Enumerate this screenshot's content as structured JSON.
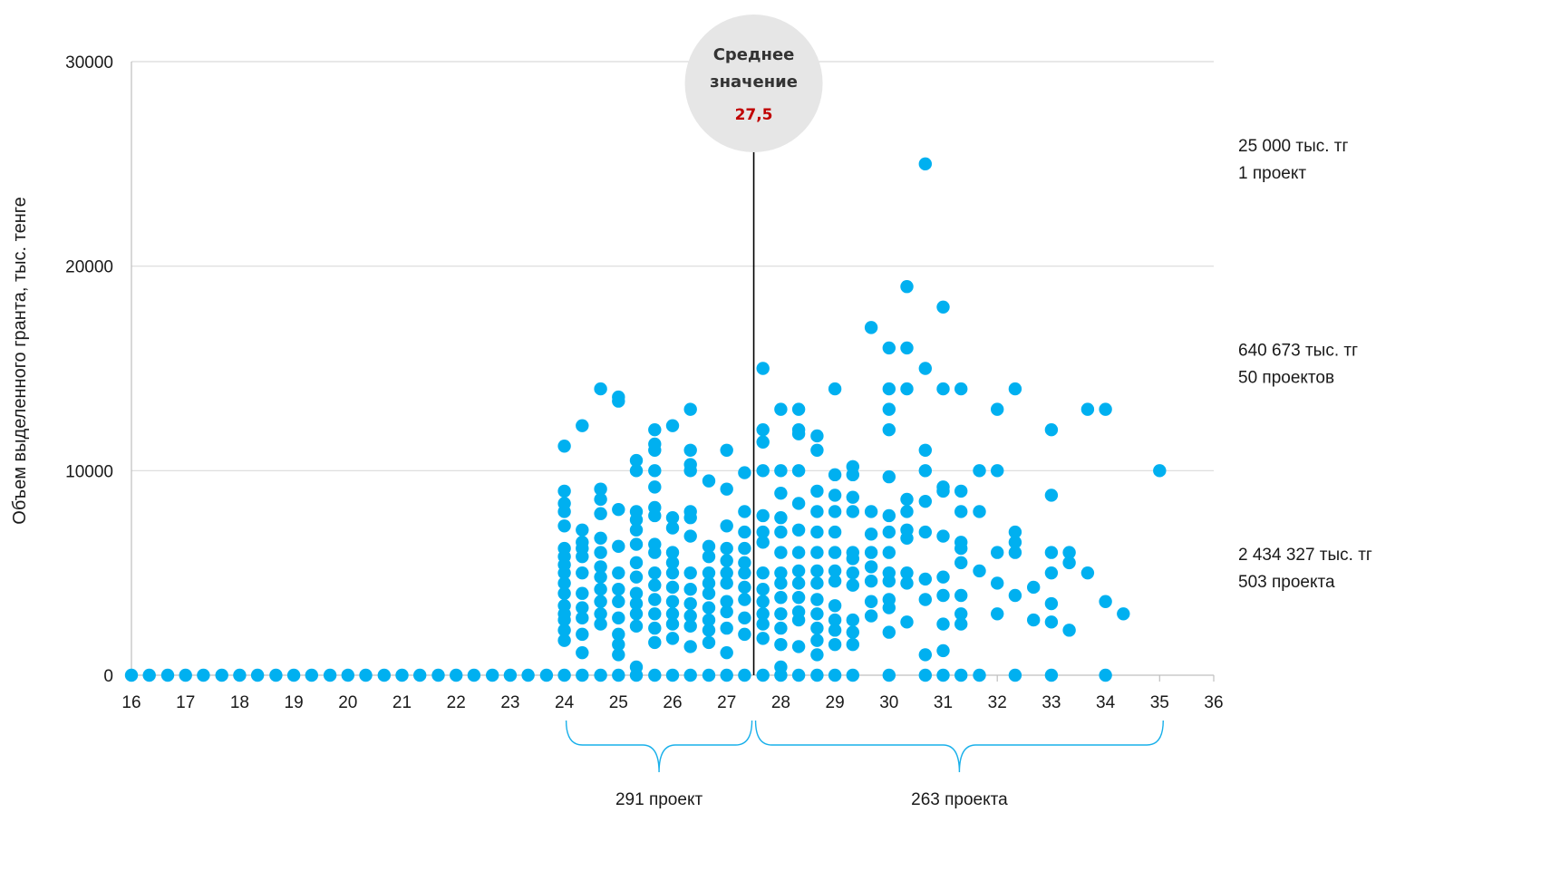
{
  "chart_data": {
    "type": "scatter",
    "title": "",
    "xlabel": "",
    "ylabel": "Объем выделенного гранта, тыс. тенге",
    "xlim": [
      16,
      36
    ],
    "ylim": [
      0,
      30000
    ],
    "x_ticks": [
      "16",
      "17",
      "18",
      "19",
      "20",
      "21",
      "22",
      "23",
      "24",
      "25",
      "26",
      "27",
      "28",
      "29",
      "30",
      "31",
      "32",
      "33",
      "34",
      "35",
      "36"
    ],
    "y_ticks": [
      "0",
      "10000",
      "20000",
      "30000"
    ],
    "grid": "horizontal",
    "point_color": "#00b0f0",
    "mean": {
      "title_line1": "Среднее",
      "title_line2": "значение",
      "value_label": "27,5",
      "value": 27.5
    },
    "braces": [
      {
        "from": 24,
        "to": 27.5,
        "label": "291 проект"
      },
      {
        "from": 27.5,
        "to": 35.1,
        "label": "263 проекта"
      }
    ],
    "side_annotations": [
      {
        "line1": "25 000 тыс. тг",
        "line2": "1 проект",
        "y": 25000
      },
      {
        "line1": "640 673 тыс. тг",
        "line2": "50 проектов",
        "y": 15000
      },
      {
        "line1": "2 434 327 тыс. тг",
        "line2": "503 проекта",
        "y": 5000
      }
    ],
    "points": [
      [
        16,
        0
      ],
      [
        16.33,
        0
      ],
      [
        16.67,
        0
      ],
      [
        17,
        0
      ],
      [
        17.33,
        0
      ],
      [
        17.67,
        0
      ],
      [
        18,
        0
      ],
      [
        18.33,
        0
      ],
      [
        18.67,
        0
      ],
      [
        19,
        0
      ],
      [
        19.33,
        0
      ],
      [
        19.67,
        0
      ],
      [
        20,
        0
      ],
      [
        20.33,
        0
      ],
      [
        20.67,
        0
      ],
      [
        21,
        0
      ],
      [
        21.33,
        0
      ],
      [
        21.67,
        0
      ],
      [
        22,
        0
      ],
      [
        22.33,
        0
      ],
      [
        22.67,
        0
      ],
      [
        23,
        0
      ],
      [
        23.33,
        0
      ],
      [
        23.67,
        0
      ],
      [
        24,
        0
      ],
      [
        24,
        1700
      ],
      [
        24,
        2200
      ],
      [
        24,
        2700
      ],
      [
        24,
        3000
      ],
      [
        24,
        3400
      ],
      [
        24,
        4000
      ],
      [
        24,
        4500
      ],
      [
        24,
        5000
      ],
      [
        24,
        5400
      ],
      [
        24,
        5800
      ],
      [
        24,
        6200
      ],
      [
        24,
        7300
      ],
      [
        24,
        8000
      ],
      [
        24,
        8400
      ],
      [
        24,
        9000
      ],
      [
        24,
        11200
      ],
      [
        24.33,
        0
      ],
      [
        24.33,
        1100
      ],
      [
        24.33,
        2000
      ],
      [
        24.33,
        2800
      ],
      [
        24.33,
        3300
      ],
      [
        24.33,
        4000
      ],
      [
        24.33,
        5000
      ],
      [
        24.33,
        5800
      ],
      [
        24.33,
        6200
      ],
      [
        24.33,
        6500
      ],
      [
        24.33,
        7100
      ],
      [
        24.33,
        12200
      ],
      [
        24.67,
        0
      ],
      [
        24.67,
        2500
      ],
      [
        24.67,
        3000
      ],
      [
        24.67,
        3600
      ],
      [
        24.67,
        4200
      ],
      [
        24.67,
        4800
      ],
      [
        24.67,
        5300
      ],
      [
        24.67,
        6000
      ],
      [
        24.67,
        6700
      ],
      [
        24.67,
        7900
      ],
      [
        24.67,
        8600
      ],
      [
        24.67,
        9100
      ],
      [
        24.67,
        14000
      ],
      [
        25,
        0
      ],
      [
        25,
        1000
      ],
      [
        25,
        1500
      ],
      [
        25,
        2000
      ],
      [
        25,
        2800
      ],
      [
        25,
        3600
      ],
      [
        25,
        4200
      ],
      [
        25,
        5000
      ],
      [
        25,
        6300
      ],
      [
        25,
        8100
      ],
      [
        25,
        13400
      ],
      [
        25,
        13600
      ],
      [
        25.33,
        0
      ],
      [
        25.33,
        400
      ],
      [
        25.33,
        2400
      ],
      [
        25.33,
        3000
      ],
      [
        25.33,
        3500
      ],
      [
        25.33,
        4000
      ],
      [
        25.33,
        4800
      ],
      [
        25.33,
        5500
      ],
      [
        25.33,
        6400
      ],
      [
        25.33,
        7100
      ],
      [
        25.33,
        7600
      ],
      [
        25.33,
        8000
      ],
      [
        25.33,
        10000
      ],
      [
        25.33,
        10500
      ],
      [
        25.67,
        0
      ],
      [
        25.67,
        1600
      ],
      [
        25.67,
        2300
      ],
      [
        25.67,
        3000
      ],
      [
        25.67,
        3700
      ],
      [
        25.67,
        4400
      ],
      [
        25.67,
        5000
      ],
      [
        25.67,
        6000
      ],
      [
        25.67,
        6400
      ],
      [
        25.67,
        7800
      ],
      [
        25.67,
        8200
      ],
      [
        25.67,
        9200
      ],
      [
        25.67,
        10000
      ],
      [
        25.67,
        11000
      ],
      [
        25.67,
        11300
      ],
      [
        25.67,
        12000
      ],
      [
        26,
        0
      ],
      [
        26,
        1800
      ],
      [
        26,
        2500
      ],
      [
        26,
        3000
      ],
      [
        26,
        3600
      ],
      [
        26,
        4300
      ],
      [
        26,
        5000
      ],
      [
        26,
        5500
      ],
      [
        26,
        6000
      ],
      [
        26,
        7200
      ],
      [
        26,
        7700
      ],
      [
        26,
        12200
      ],
      [
        26.33,
        0
      ],
      [
        26.33,
        1400
      ],
      [
        26.33,
        2400
      ],
      [
        26.33,
        2900
      ],
      [
        26.33,
        3500
      ],
      [
        26.33,
        4200
      ],
      [
        26.33,
        5000
      ],
      [
        26.33,
        6800
      ],
      [
        26.33,
        7700
      ],
      [
        26.33,
        8000
      ],
      [
        26.33,
        10000
      ],
      [
        26.33,
        10300
      ],
      [
        26.33,
        11000
      ],
      [
        26.33,
        13000
      ],
      [
        26.67,
        0
      ],
      [
        26.67,
        1600
      ],
      [
        26.67,
        2200
      ],
      [
        26.67,
        2700
      ],
      [
        26.67,
        3300
      ],
      [
        26.67,
        4000
      ],
      [
        26.67,
        4500
      ],
      [
        26.67,
        5000
      ],
      [
        26.67,
        5800
      ],
      [
        26.67,
        6300
      ],
      [
        26.67,
        9500
      ],
      [
        27,
        0
      ],
      [
        27,
        1100
      ],
      [
        27,
        2300
      ],
      [
        27,
        3100
      ],
      [
        27,
        3600
      ],
      [
        27,
        4500
      ],
      [
        27,
        5000
      ],
      [
        27,
        5600
      ],
      [
        27,
        6200
      ],
      [
        27,
        7300
      ],
      [
        27,
        9100
      ],
      [
        27,
        11000
      ],
      [
        27.33,
        0
      ],
      [
        27.33,
        2000
      ],
      [
        27.33,
        2800
      ],
      [
        27.33,
        3700
      ],
      [
        27.33,
        4300
      ],
      [
        27.33,
        5000
      ],
      [
        27.33,
        5500
      ],
      [
        27.33,
        6200
      ],
      [
        27.33,
        7000
      ],
      [
        27.33,
        8000
      ],
      [
        27.33,
        9900
      ],
      [
        27.67,
        0
      ],
      [
        27.67,
        1800
      ],
      [
        27.67,
        2500
      ],
      [
        27.67,
        3000
      ],
      [
        27.67,
        3600
      ],
      [
        27.67,
        4200
      ],
      [
        27.67,
        5000
      ],
      [
        27.67,
        6500
      ],
      [
        27.67,
        7000
      ],
      [
        27.67,
        7800
      ],
      [
        27.67,
        10000
      ],
      [
        27.67,
        11400
      ],
      [
        27.67,
        12000
      ],
      [
        27.67,
        15000
      ],
      [
        28,
        0
      ],
      [
        28,
        400
      ],
      [
        28,
        1500
      ],
      [
        28,
        2300
      ],
      [
        28,
        3000
      ],
      [
        28,
        3800
      ],
      [
        28,
        4500
      ],
      [
        28,
        5000
      ],
      [
        28,
        6000
      ],
      [
        28,
        7000
      ],
      [
        28,
        7700
      ],
      [
        28,
        8900
      ],
      [
        28,
        10000
      ],
      [
        28,
        13000
      ],
      [
        28.33,
        0
      ],
      [
        28.33,
        1400
      ],
      [
        28.33,
        2700
      ],
      [
        28.33,
        3100
      ],
      [
        28.33,
        3800
      ],
      [
        28.33,
        4500
      ],
      [
        28.33,
        5100
      ],
      [
        28.33,
        6000
      ],
      [
        28.33,
        7100
      ],
      [
        28.33,
        8400
      ],
      [
        28.33,
        10000
      ],
      [
        28.33,
        11800
      ],
      [
        28.33,
        12000
      ],
      [
        28.33,
        13000
      ],
      [
        28.67,
        0
      ],
      [
        28.67,
        1000
      ],
      [
        28.67,
        1700
      ],
      [
        28.67,
        2300
      ],
      [
        28.67,
        3000
      ],
      [
        28.67,
        3700
      ],
      [
        28.67,
        4500
      ],
      [
        28.67,
        5100
      ],
      [
        28.67,
        6000
      ],
      [
        28.67,
        7000
      ],
      [
        28.67,
        8000
      ],
      [
        28.67,
        9000
      ],
      [
        28.67,
        11000
      ],
      [
        28.67,
        11700
      ],
      [
        29,
        0
      ],
      [
        29,
        1500
      ],
      [
        29,
        2200
      ],
      [
        29,
        2700
      ],
      [
        29,
        3400
      ],
      [
        29,
        4600
      ],
      [
        29,
        5100
      ],
      [
        29,
        6000
      ],
      [
        29,
        7000
      ],
      [
        29,
        8000
      ],
      [
        29,
        8800
      ],
      [
        29,
        9800
      ],
      [
        29,
        14000
      ],
      [
        29.33,
        0
      ],
      [
        29.33,
        1500
      ],
      [
        29.33,
        2100
      ],
      [
        29.33,
        2700
      ],
      [
        29.33,
        4400
      ],
      [
        29.33,
        5000
      ],
      [
        29.33,
        5700
      ],
      [
        29.33,
        6000
      ],
      [
        29.33,
        8000
      ],
      [
        29.33,
        8700
      ],
      [
        29.33,
        9800
      ],
      [
        29.33,
        10200
      ],
      [
        29.67,
        2900
      ],
      [
        29.67,
        3600
      ],
      [
        29.67,
        4600
      ],
      [
        29.67,
        5300
      ],
      [
        29.67,
        6000
      ],
      [
        29.67,
        6900
      ],
      [
        29.67,
        8000
      ],
      [
        29.67,
        17000
      ],
      [
        30,
        0
      ],
      [
        30,
        2100
      ],
      [
        30,
        3300
      ],
      [
        30,
        3700
      ],
      [
        30,
        4600
      ],
      [
        30,
        5000
      ],
      [
        30,
        6000
      ],
      [
        30,
        7000
      ],
      [
        30,
        7800
      ],
      [
        30,
        9700
      ],
      [
        30,
        12000
      ],
      [
        30,
        13000
      ],
      [
        30,
        14000
      ],
      [
        30,
        16000
      ],
      [
        30.33,
        2600
      ],
      [
        30.33,
        4500
      ],
      [
        30.33,
        5000
      ],
      [
        30.33,
        6700
      ],
      [
        30.33,
        7100
      ],
      [
        30.33,
        8000
      ],
      [
        30.33,
        8600
      ],
      [
        30.33,
        14000
      ],
      [
        30.33,
        16000
      ],
      [
        30.33,
        19000
      ],
      [
        30.67,
        0
      ],
      [
        30.67,
        1000
      ],
      [
        30.67,
        3700
      ],
      [
        30.67,
        4700
      ],
      [
        30.67,
        7000
      ],
      [
        30.67,
        8500
      ],
      [
        30.67,
        10000
      ],
      [
        30.67,
        11000
      ],
      [
        30.67,
        15000
      ],
      [
        30.67,
        25000
      ],
      [
        31,
        0
      ],
      [
        31,
        1200
      ],
      [
        31,
        2500
      ],
      [
        31,
        3900
      ],
      [
        31,
        4800
      ],
      [
        31,
        6800
      ],
      [
        31,
        9000
      ],
      [
        31,
        9200
      ],
      [
        31,
        14000
      ],
      [
        31,
        18000
      ],
      [
        31.33,
        0
      ],
      [
        31.33,
        2500
      ],
      [
        31.33,
        3000
      ],
      [
        31.33,
        3900
      ],
      [
        31.33,
        5500
      ],
      [
        31.33,
        6200
      ],
      [
        31.33,
        6500
      ],
      [
        31.33,
        8000
      ],
      [
        31.33,
        9000
      ],
      [
        31.33,
        14000
      ],
      [
        31.67,
        0
      ],
      [
        31.67,
        5100
      ],
      [
        31.67,
        8000
      ],
      [
        31.67,
        10000
      ],
      [
        32,
        3000
      ],
      [
        32,
        4500
      ],
      [
        32,
        6000
      ],
      [
        32,
        10000
      ],
      [
        32,
        13000
      ],
      [
        32.33,
        0
      ],
      [
        32.33,
        3900
      ],
      [
        32.33,
        6000
      ],
      [
        32.33,
        6500
      ],
      [
        32.33,
        7000
      ],
      [
        32.33,
        14000
      ],
      [
        32.67,
        2700
      ],
      [
        32.67,
        4300
      ],
      [
        33,
        0
      ],
      [
        33,
        2600
      ],
      [
        33,
        3500
      ],
      [
        33,
        5000
      ],
      [
        33,
        6000
      ],
      [
        33,
        8800
      ],
      [
        33,
        12000
      ],
      [
        33.33,
        2200
      ],
      [
        33.33,
        5500
      ],
      [
        33.33,
        6000
      ],
      [
        33.67,
        5000
      ],
      [
        33.67,
        13000
      ],
      [
        34,
        0
      ],
      [
        34,
        3600
      ],
      [
        34,
        13000
      ],
      [
        34.33,
        3000
      ],
      [
        35,
        10000
      ]
    ]
  }
}
